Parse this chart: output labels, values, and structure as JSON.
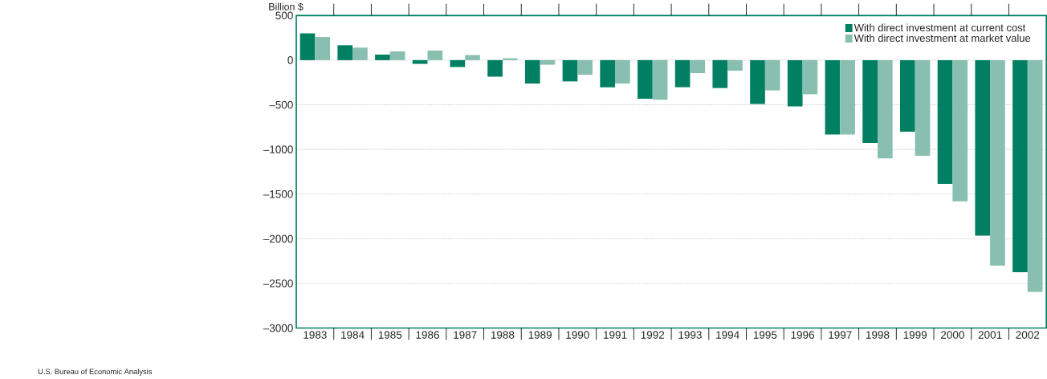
{
  "chart_data": {
    "type": "bar",
    "ylabel": "Billion $",
    "annotations": [
      "U.S. Bureau of Economic Analysis"
    ],
    "categories": [
      "1983",
      "1984",
      "1985",
      "1986",
      "1987",
      "1988",
      "1989",
      "1990",
      "1991",
      "1992",
      "1993",
      "1994",
      "1995",
      "1996",
      "1997",
      "1998",
      "1999",
      "2000",
      "2001",
      "2002"
    ],
    "series": [
      {
        "name": "With direct investment at current cost",
        "color": "#007f62",
        "values": [
          300,
          167,
          62,
          -42,
          -77,
          -185,
          -262,
          -238,
          -304,
          -432,
          -303,
          -312,
          -491,
          -518,
          -833,
          -927,
          -800,
          -1385,
          -1965,
          -2375
        ]
      },
      {
        "name": "With direct investment at market value",
        "color": "#88bfb0",
        "values": [
          259,
          140,
          98,
          107,
          57,
          21,
          -51,
          -164,
          -262,
          -443,
          -145,
          -118,
          -339,
          -382,
          -833,
          -1100,
          -1070,
          -1582,
          -2301,
          -2594
        ]
      }
    ],
    "ylim": [
      -3000,
      500
    ],
    "yticks": [
      500,
      0,
      {
        "value": -500,
        "label": "–500"
      },
      {
        "value": -1000,
        "label": "–1000"
      },
      {
        "value": -1500,
        "label": "–1500"
      },
      {
        "value": -2000,
        "label": "–2000"
      },
      {
        "value": -2500,
        "label": "–2500"
      },
      {
        "value": -3000,
        "label": "–3000"
      }
    ],
    "grid": "y",
    "legend": "top right"
  }
}
